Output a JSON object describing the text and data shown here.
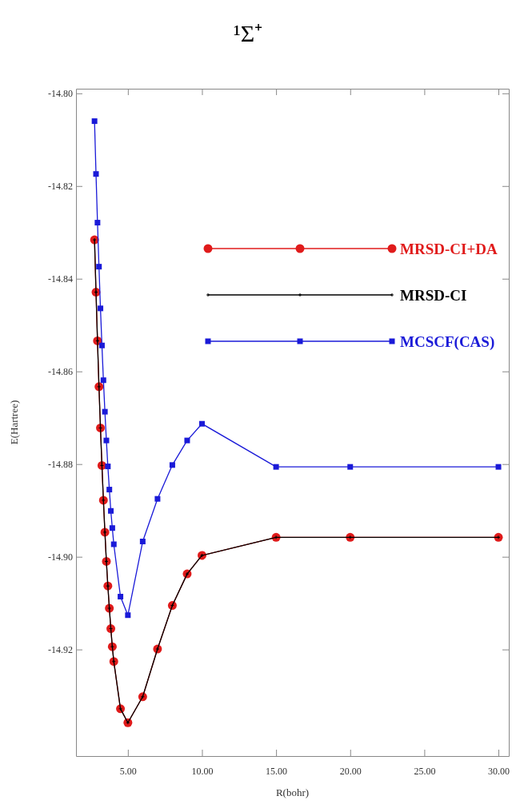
{
  "chart_data": {
    "type": "line",
    "title": "¹Σ⁺",
    "xlabel": "R(bohr)",
    "ylabel": "E(Hartree)",
    "x": [
      2.75,
      2.85,
      2.95,
      3.05,
      3.15,
      3.25,
      3.35,
      3.45,
      3.55,
      3.65,
      3.75,
      3.85,
      3.95,
      4.05,
      4.5,
      5,
      6,
      7,
      8,
      9,
      10,
      15,
      20,
      30
    ],
    "series": [
      {
        "name": "MRSD-CI+DA",
        "color": "#e01b1b",
        "marker": "circle",
        "values": [
          -14.8316,
          -14.8429,
          -14.8534,
          -14.8633,
          -14.8722,
          -14.8803,
          -14.8878,
          -14.8947,
          -14.901,
          -14.9063,
          -14.9111,
          -14.9155,
          -14.9194,
          -14.9226,
          -14.9328,
          -14.9358,
          -14.9302,
          -14.9199,
          -14.9105,
          -14.9037,
          -14.8997,
          -14.8958,
          -14.8958,
          -14.8958
        ]
      },
      {
        "name": "MRSD-CI",
        "color": "#000000",
        "marker": "cross",
        "values": [
          -14.8316,
          -14.8429,
          -14.8534,
          -14.8633,
          -14.8722,
          -14.8803,
          -14.8878,
          -14.8947,
          -14.901,
          -14.9063,
          -14.9111,
          -14.9155,
          -14.9194,
          -14.9226,
          -14.9328,
          -14.9358,
          -14.9302,
          -14.9199,
          -14.9105,
          -14.9037,
          -14.8997,
          -14.8958,
          -14.8958,
          -14.8958
        ]
      },
      {
        "name": "MCSCF(CAS)",
        "color": "#1a1ad8",
        "marker": "square",
        "values": [
          -14.806,
          -14.8174,
          -14.8279,
          -14.8374,
          -14.8464,
          -14.8544,
          -14.8619,
          -14.8687,
          -14.8749,
          -14.8805,
          -14.8855,
          -14.8901,
          -14.8938,
          -14.8973,
          -14.9086,
          -14.9126,
          -14.8967,
          -14.8875,
          -14.8802,
          -14.8749,
          -14.8713,
          -14.8806,
          -14.8806,
          -14.8806
        ]
      }
    ],
    "xlim": [
      1.5,
      30.7
    ],
    "ylim": [
      -14.943,
      -14.799
    ],
    "xticks": [
      {
        "value": 5,
        "label": "5.00"
      },
      {
        "value": 10,
        "label": "10.00"
      },
      {
        "value": 15,
        "label": "15.00"
      },
      {
        "value": 20,
        "label": "20.00"
      },
      {
        "value": 25,
        "label": "25.00"
      },
      {
        "value": 30,
        "label": "30.00"
      }
    ],
    "yticks": [
      {
        "value": -14.8,
        "label": "-14.80"
      },
      {
        "value": -14.82,
        "label": "-14.82"
      },
      {
        "value": -14.84,
        "label": "-14.84"
      },
      {
        "value": -14.86,
        "label": "-14.86"
      },
      {
        "value": -14.88,
        "label": "-14.88"
      },
      {
        "value": -14.9,
        "label": "-14.90"
      },
      {
        "value": -14.92,
        "label": "-14.92"
      }
    ],
    "grid": false,
    "legend": "top right"
  }
}
